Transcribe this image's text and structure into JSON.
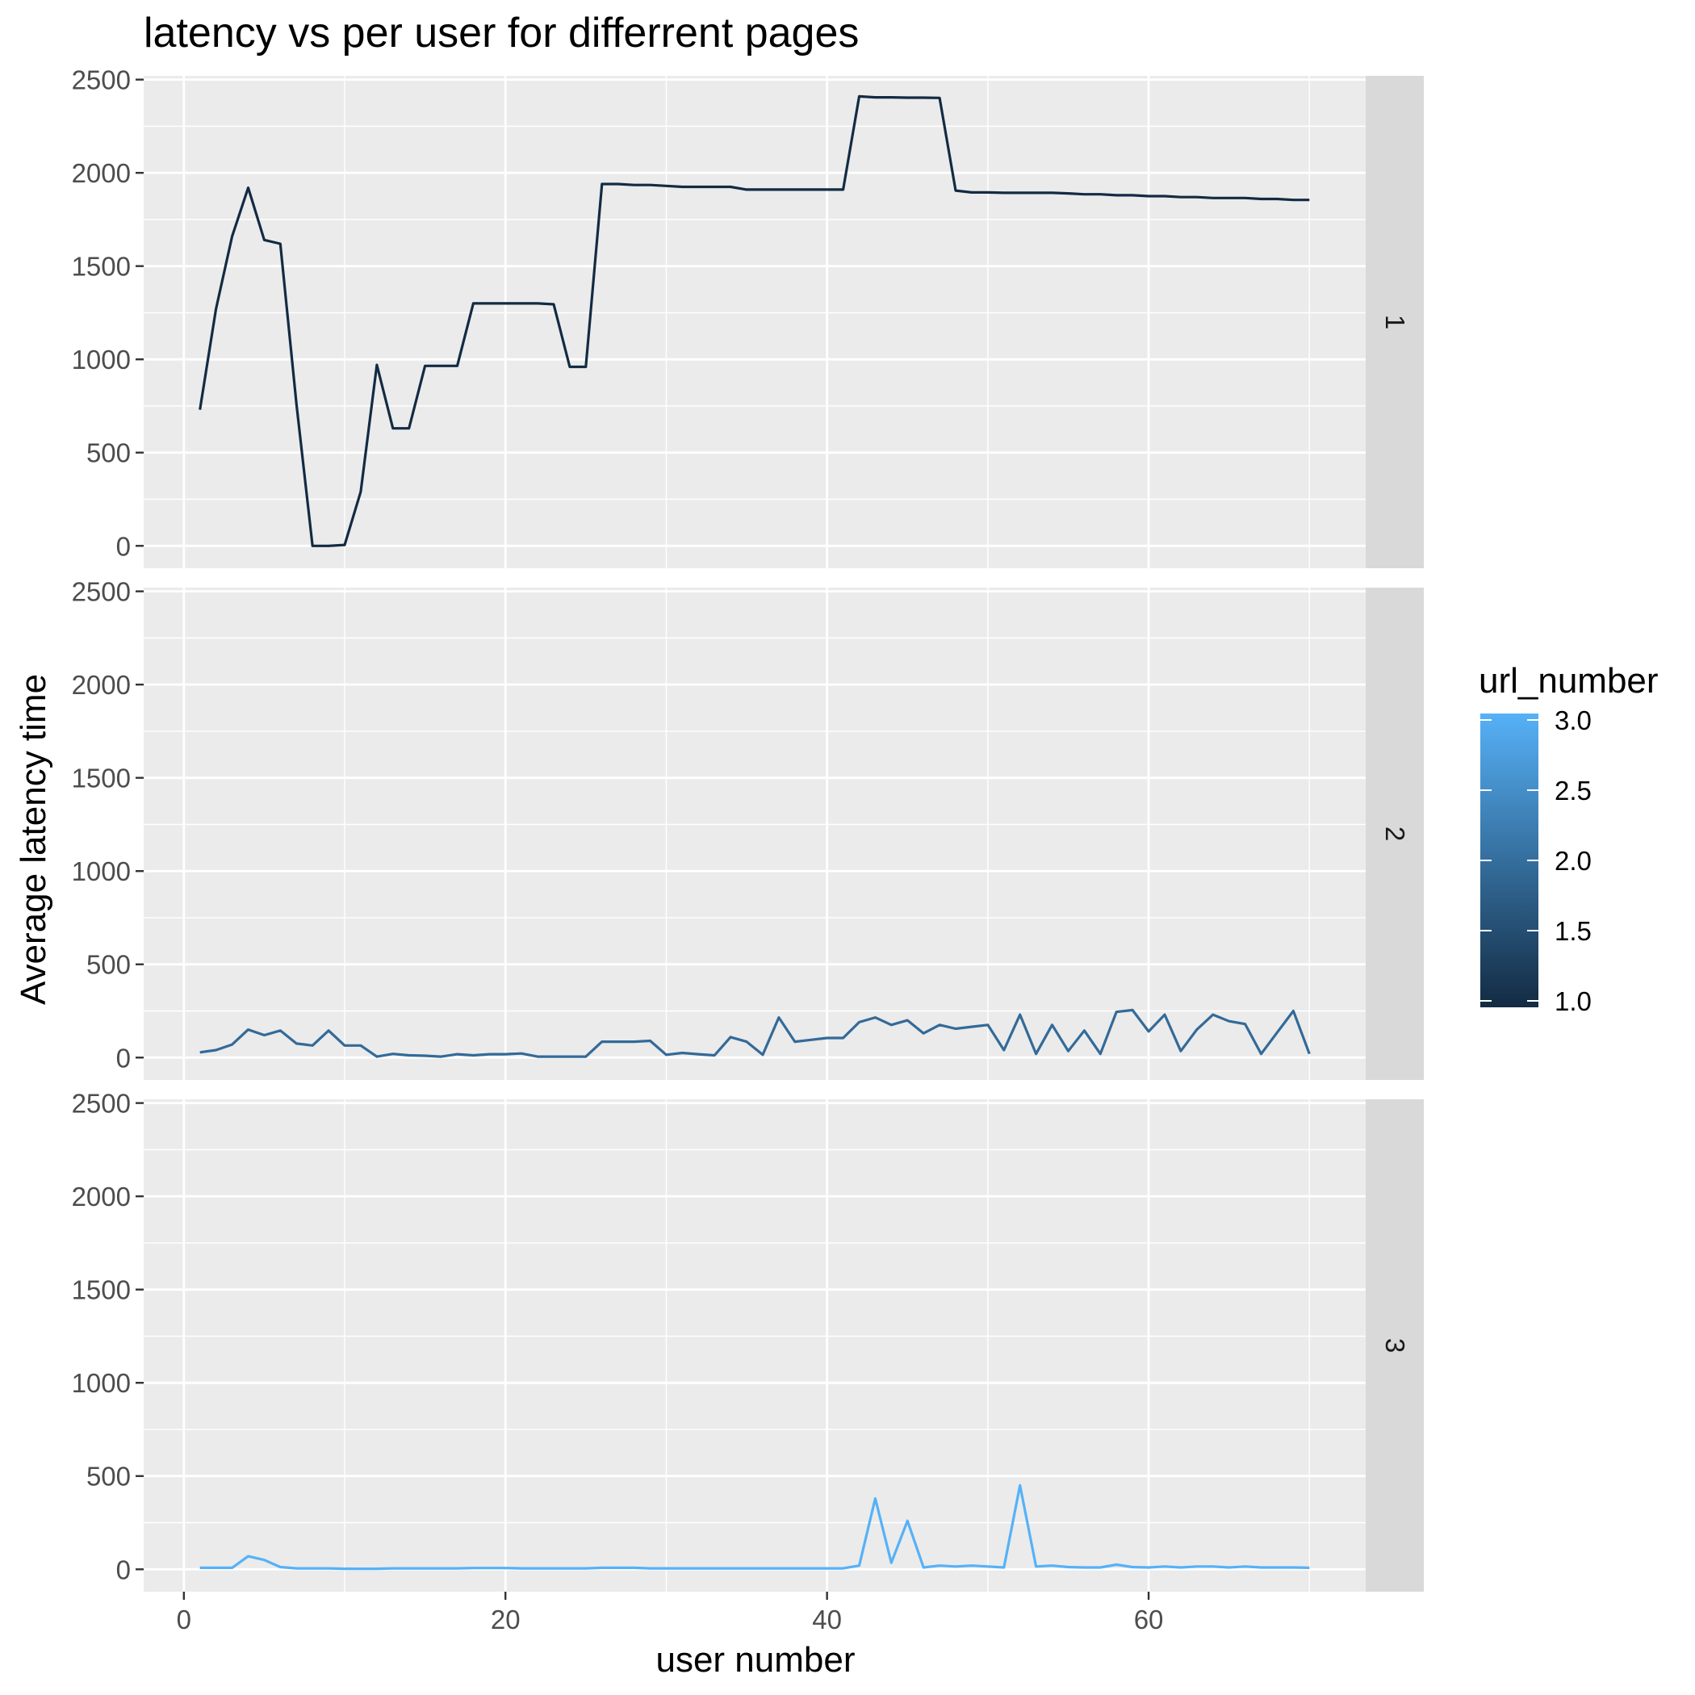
{
  "chart_data": {
    "type": "line",
    "title": "latency vs per user for differrent pages",
    "xlabel": "user number",
    "ylabel": "Average latency time",
    "xlim": [
      -2.5,
      73.5
    ],
    "ylim": [
      -120,
      2520
    ],
    "x_ticks": [
      0,
      20,
      40,
      60
    ],
    "y_ticks": [
      0,
      500,
      1000,
      1500,
      2000,
      2500
    ],
    "grid": true,
    "x": [
      1,
      2,
      3,
      4,
      5,
      6,
      7,
      8,
      9,
      10,
      11,
      12,
      13,
      14,
      15,
      16,
      17,
      18,
      19,
      20,
      21,
      22,
      23,
      24,
      25,
      26,
      27,
      28,
      29,
      30,
      31,
      32,
      33,
      34,
      35,
      36,
      37,
      38,
      39,
      40,
      41,
      42,
      43,
      44,
      45,
      46,
      47,
      48,
      49,
      50,
      51,
      52,
      53,
      54,
      55,
      56,
      57,
      58,
      59,
      60,
      61,
      62,
      63,
      64,
      65,
      66,
      67,
      68,
      69,
      70
    ],
    "facets": [
      {
        "label": "1",
        "url_number": 1.0,
        "color": "#132b43",
        "values": [
          730,
          1270,
          1660,
          1920,
          1640,
          1620,
          760,
          0,
          0,
          5,
          290,
          970,
          630,
          630,
          965,
          965,
          965,
          1300,
          1300,
          1300,
          1300,
          1300,
          1295,
          960,
          960,
          1940,
          1940,
          1935,
          1935,
          1930,
          1925,
          1925,
          1925,
          1925,
          1910,
          1910,
          1910,
          1910,
          1910,
          1910,
          1910,
          2410,
          2405,
          2405,
          2403,
          2403,
          2402,
          1905,
          1895,
          1895,
          1893,
          1893,
          1893,
          1893,
          1890,
          1885,
          1885,
          1880,
          1880,
          1875,
          1875,
          1870,
          1870,
          1865,
          1865,
          1865,
          1860,
          1860,
          1855,
          1855
        ]
      },
      {
        "label": "2",
        "url_number": 2.0,
        "color": "#336a98",
        "values": [
          28,
          40,
          70,
          150,
          120,
          145,
          75,
          65,
          145,
          65,
          65,
          5,
          20,
          12,
          10,
          5,
          18,
          12,
          18,
          18,
          22,
          5,
          5,
          5,
          5,
          85,
          85,
          85,
          90,
          15,
          25,
          18,
          12,
          110,
          85,
          15,
          215,
          85,
          95,
          105,
          105,
          190,
          215,
          175,
          200,
          130,
          175,
          155,
          165,
          175,
          40,
          230,
          20,
          175,
          35,
          145,
          20,
          245,
          255,
          140,
          230,
          35,
          150,
          230,
          195,
          180,
          20,
          135,
          250,
          20
        ]
      },
      {
        "label": "3",
        "url_number": 3.0,
        "color": "#56b1f7",
        "values": [
          8,
          8,
          8,
          70,
          50,
          12,
          5,
          5,
          5,
          3,
          3,
          3,
          5,
          5,
          5,
          5,
          5,
          7,
          7,
          7,
          5,
          5,
          5,
          5,
          5,
          8,
          8,
          8,
          5,
          5,
          5,
          5,
          5,
          5,
          5,
          5,
          5,
          5,
          5,
          5,
          5,
          20,
          380,
          35,
          260,
          10,
          20,
          15,
          20,
          15,
          10,
          450,
          15,
          20,
          12,
          10,
          10,
          25,
          12,
          10,
          15,
          10,
          15,
          15,
          10,
          15,
          10,
          10,
          10,
          8
        ]
      }
    ],
    "legend": {
      "title": "url_number",
      "placement": "right",
      "type": "colorbar",
      "range": [
        1.0,
        3.0
      ],
      "low_color": "#132b43",
      "high_color": "#56b1f7",
      "breaks": [
        {
          "value": 1.0,
          "label": "1.0"
        },
        {
          "value": 1.5,
          "label": "1.5"
        },
        {
          "value": 2.0,
          "label": "2.0"
        },
        {
          "value": 2.5,
          "label": "2.5"
        },
        {
          "value": 3.0,
          "label": "3.0"
        }
      ]
    }
  },
  "colors": {
    "panel_background": "#ebebeb",
    "grid": "#ffffff",
    "strip_background": "#d9d9d9",
    "tick_text": "#4d4d4d"
  }
}
